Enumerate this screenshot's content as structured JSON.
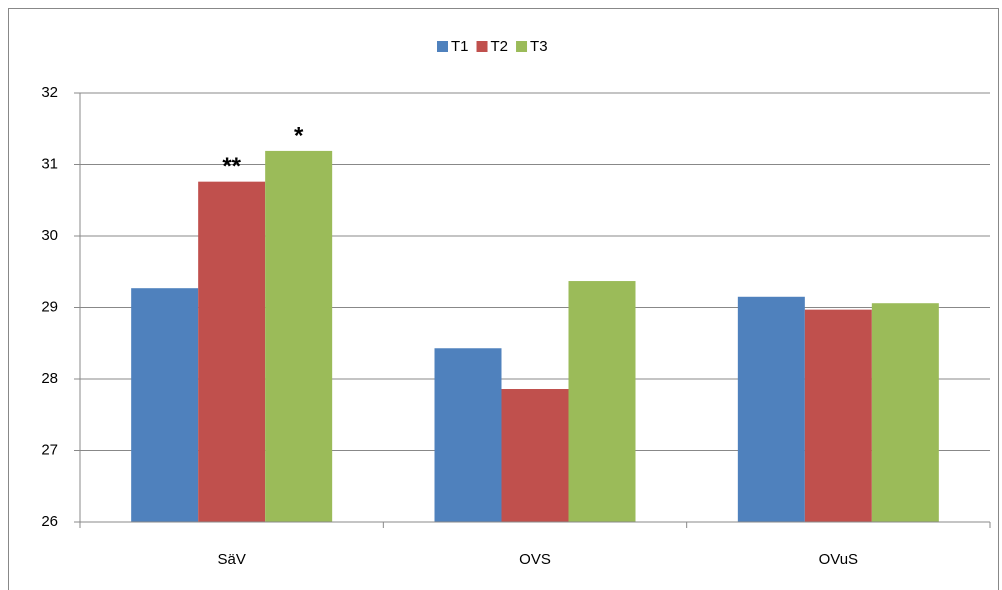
{
  "chart_data": {
    "type": "bar",
    "categories": [
      "SäV",
      "OVS",
      "OVuS"
    ],
    "series": [
      {
        "name": "T1",
        "color": "#4f81bd",
        "values": [
          29.27,
          28.43,
          29.15
        ]
      },
      {
        "name": "T2",
        "color": "#c0504d",
        "values": [
          30.76,
          27.86,
          28.97
        ]
      },
      {
        "name": "T3",
        "color": "#9bbb59",
        "values": [
          31.19,
          29.37,
          29.06
        ]
      }
    ],
    "ylim": [
      26,
      32
    ],
    "yticks": [
      26,
      27,
      28,
      29,
      30,
      31,
      32
    ],
    "grid": true,
    "legend": "top",
    "annotations": [
      {
        "text": "**",
        "category": "SäV",
        "series": "T2"
      },
      {
        "text": "*",
        "category": "SäV",
        "series": "T3"
      }
    ]
  }
}
